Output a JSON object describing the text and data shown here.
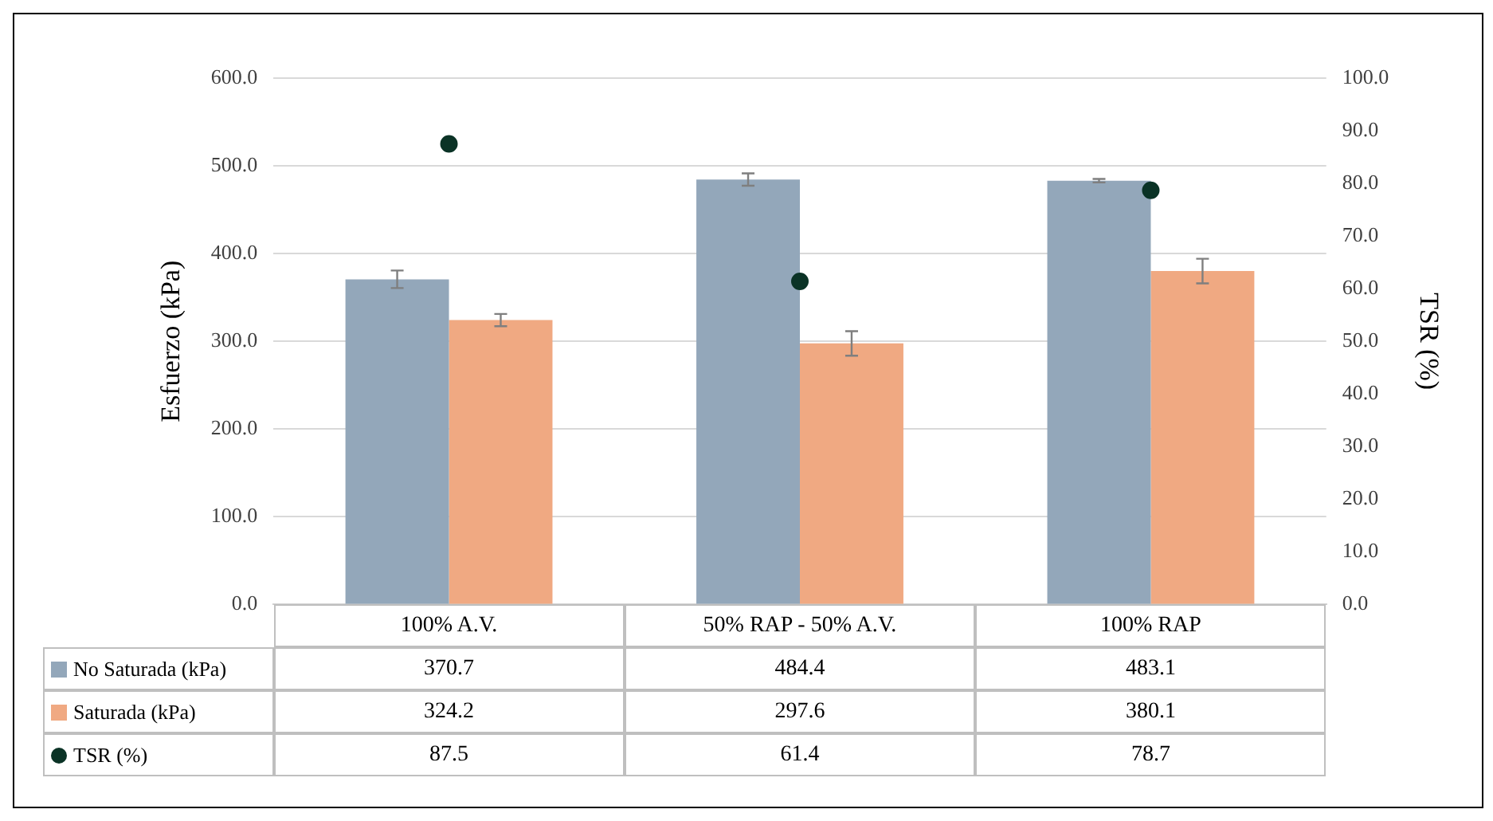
{
  "chart_data": {
    "type": "bar",
    "ylabel": "Esfuerzo (kPa)",
    "y2label": "TSR (%)",
    "categories": [
      "100% A.V.",
      "50% RAP - 50% A.V.",
      "100% RAP"
    ],
    "series": [
      {
        "name": "No Saturada (kPa)",
        "color": "#93a7ba",
        "values": [
          370.7,
          484.4,
          483.1
        ],
        "errors": [
          10,
          7,
          2
        ]
      },
      {
        "name": "Saturada (kPa)",
        "color": "#f0a982",
        "values": [
          324.2,
          297.6,
          380.1
        ],
        "errors": [
          7,
          14,
          14
        ]
      },
      {
        "name": "TSR (%)",
        "type": "scatter",
        "axis": "y2",
        "marker": "circle",
        "color": "#0b3326",
        "x": [
          "100% A.V.",
          "50% RAP - 50% A.V.",
          "100% RAP"
        ],
        "values": [
          87.5,
          61.4,
          78.7
        ]
      }
    ],
    "ylim": [
      0,
      600
    ],
    "yticks": [
      {
        "value": 0,
        "label": "0.0"
      },
      {
        "value": 100,
        "label": "100.0"
      },
      {
        "value": 200,
        "label": "200.0"
      },
      {
        "value": 300,
        "label": "300.0"
      },
      {
        "value": 400,
        "label": "400.0"
      },
      {
        "value": 500,
        "label": "500.0"
      },
      {
        "value": 600,
        "label": "600.0"
      }
    ],
    "y2lim": [
      0,
      100
    ],
    "y2ticks": [
      {
        "value": 0,
        "label": "0.0"
      },
      {
        "value": 10,
        "label": "10.0"
      },
      {
        "value": 20,
        "label": "20.0"
      },
      {
        "value": 30,
        "label": "30.0"
      },
      {
        "value": 40,
        "label": "40.0"
      },
      {
        "value": 50,
        "label": "50.0"
      },
      {
        "value": 60,
        "label": "60.0"
      },
      {
        "value": 70,
        "label": "70.0"
      },
      {
        "value": 80,
        "label": "80.0"
      },
      {
        "value": 90,
        "label": "90.0"
      },
      {
        "value": 100,
        "label": "100.0"
      }
    ],
    "grid": "y",
    "legend": "bottom",
    "data_labels": true
  }
}
